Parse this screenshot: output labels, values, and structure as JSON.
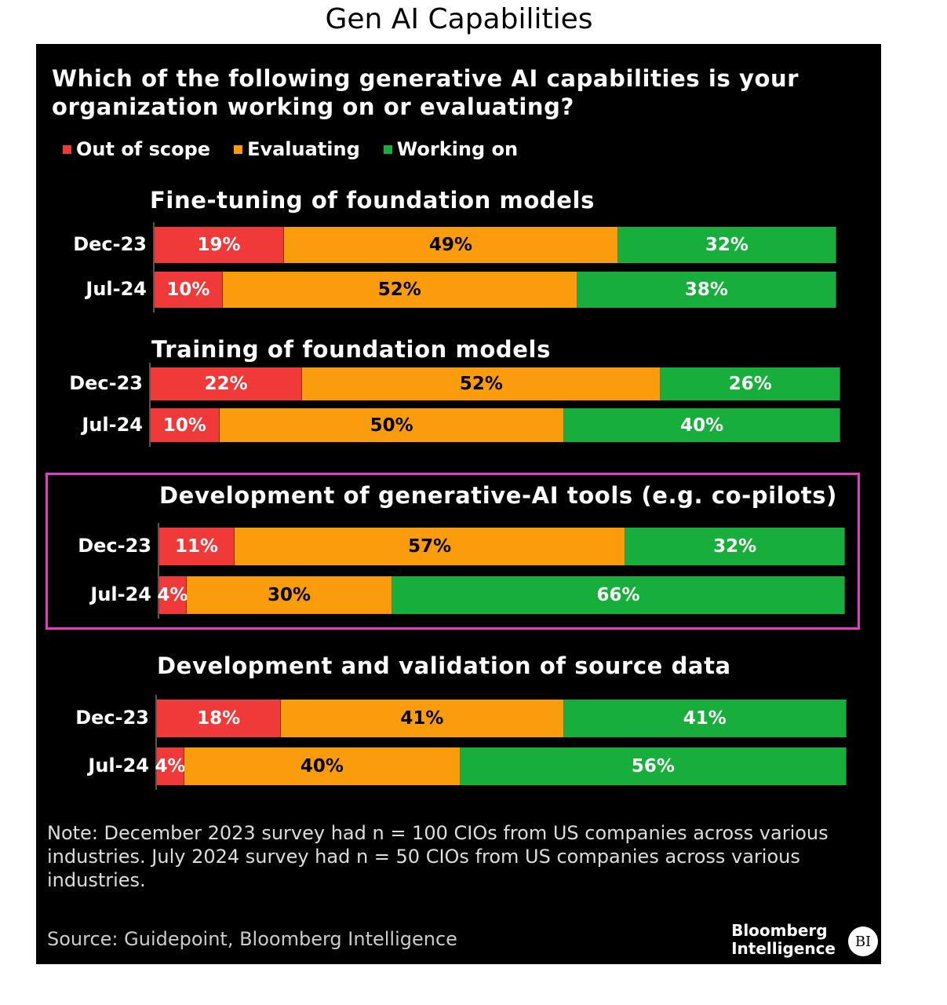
{
  "title": "Gen AI Capabilities",
  "question": "Which of the following generative AI capabilities is your organization working on or evaluating?",
  "colors": {
    "out_of_scope": "#f03a3a",
    "evaluating": "#fb9c0c",
    "working_on": "#17ae3c",
    "highlight": "#e040c0"
  },
  "legend": [
    {
      "label": "Out of scope",
      "color": "#f03a3a"
    },
    {
      "label": "Evaluating",
      "color": "#fb9c0c"
    },
    {
      "label": "Working on",
      "color": "#17ae3c"
    }
  ],
  "chart_data": {
    "type": "bar",
    "stacked": true,
    "orientation": "horizontal",
    "unit": "%",
    "series_names": [
      "Out of scope",
      "Evaluating",
      "Working on"
    ],
    "groups": [
      {
        "title": "Fine-tuning of foundation models",
        "rows": [
          {
            "label": "Dec-23",
            "values": [
              19,
              49,
              32
            ]
          },
          {
            "label": "Jul-24",
            "values": [
              10,
              52,
              38
            ]
          }
        ]
      },
      {
        "title": "Training of foundation models",
        "rows": [
          {
            "label": "Dec-23",
            "values": [
              22,
              52,
              26
            ]
          },
          {
            "label": "Jul-24",
            "values": [
              10,
              50,
              40
            ]
          }
        ]
      },
      {
        "title": "Development of generative-AI tools (e.g. co-pilots)",
        "highlighted": true,
        "rows": [
          {
            "label": "Dec-23",
            "values": [
              11,
              57,
              32
            ]
          },
          {
            "label": "Jul-24",
            "values": [
              4,
              30,
              66
            ]
          }
        ]
      },
      {
        "title": "Development and validation of source data",
        "rows": [
          {
            "label": "Dec-23",
            "values": [
              18,
              41,
              41
            ]
          },
          {
            "label": "Jul-24",
            "values": [
              4,
              40,
              56
            ]
          }
        ]
      }
    ]
  },
  "note": "Note: December 2023 survey had n = 100 CIOs from US companies across various industries. July 2024 survey had n = 50 CIOs from US companies across various industries.",
  "source": "Source: Guidepoint, Bloomberg Intelligence",
  "brand": {
    "line1": "Bloomberg",
    "line2": "Intelligence",
    "logo": "BI"
  }
}
